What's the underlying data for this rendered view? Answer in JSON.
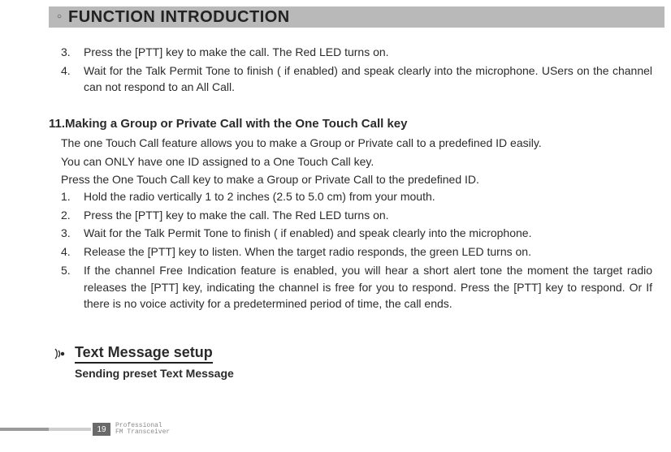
{
  "title": "FUNCTION INTRODUCTION",
  "block1": [
    {
      "n": "3.",
      "t": "Press the [PTT] key to make the call. The Red LED turns on."
    },
    {
      "n": "4.",
      "t": "Wait for the Talk Permit Tone to finish ( if enabled) and speak clearly into the microphone. USers on the channel can not respond to an All Call."
    }
  ],
  "sec11_head": "11.Making a Group or Private Call with the One Touch Call key",
  "block2_paras": [
    "The one Touch Call feature allows you to make a Group or Private call to a predefined ID easily.",
    "You can ONLY have one ID assigned to a One Touch Call key.",
    "Press the One Touch Call key to make a Group or Private Call to the predefined ID."
  ],
  "block3": [
    {
      "n": "1.",
      "t": "Hold the radio vertically 1 to 2 inches (2.5 to 5.0 cm) from your mouth."
    },
    {
      "n": "2.",
      "t": "Press the [PTT] key to make the call. The Red LED turns on."
    },
    {
      "n": "3.",
      "t": "Wait for the Talk Permit Tone to finish ( if enabled) and speak clearly into the microphone."
    },
    {
      "n": "4.",
      "t": "Release the [PTT] key to listen. When the target radio responds, the green LED turns on."
    },
    {
      "n": "5.",
      "t": "If the channel Free Indication feature is enabled, you will hear a short alert tone the moment the target radio releases the [PTT] key, indicating the channel is free for you to respond. Press the [PTT] key to respond. Or If there is no voice activity for a predetermined period of time, the call ends."
    }
  ],
  "tms_head": "Text Message setup",
  "tms_sub": "Sending preset Text Message",
  "footer": {
    "page": "19",
    "line1": "Professional",
    "line2": "FM Transceiver"
  },
  "colors": {
    "title_bar_bg": "#b9b9b9",
    "text": "#2b2b2b",
    "page_badge_bg": "#6a6a6a",
    "fbar1": "#9a9a9a",
    "fbar2": "#cfcfcf",
    "footer_text": "#8a8a8a"
  }
}
